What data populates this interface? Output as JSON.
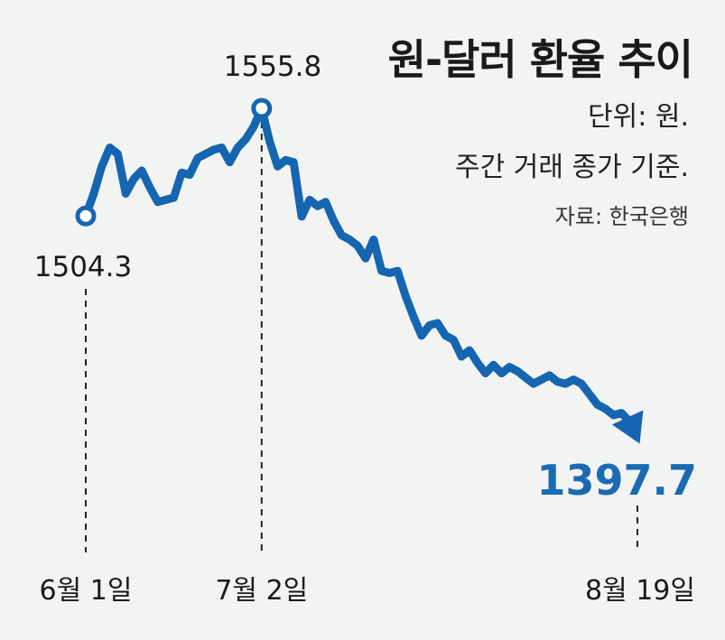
{
  "title": "원-달러 환율 추이",
  "unit_note": "단위: 원.",
  "basis_note": "주간 거래 종가 기준.",
  "source": "자료: 한국은행",
  "colors": {
    "line": "#1565b0",
    "end_value": "#1a6ab4",
    "text": "#1a1a1a",
    "background": "#f2f4f2"
  },
  "chart_data": {
    "type": "line",
    "title": "원-달러 환율 추이",
    "xlabel": "",
    "ylabel": "",
    "x_tick_labels": [
      "6월 1일",
      "7월 2일",
      "8월 19일"
    ],
    "x_tick_indices": [
      0,
      29,
      69
    ],
    "ylim": [
      1390,
      1560
    ],
    "values": [
      1504.3,
      1515,
      1528,
      1537,
      1534,
      1515,
      1522,
      1526,
      1518,
      1511,
      1512,
      1513,
      1525,
      1524,
      1532,
      1534,
      1536,
      1537,
      1530,
      1537,
      1541,
      1547,
      1555.8,
      1540,
      1528,
      1531,
      1530,
      1504,
      1512,
      1509,
      1511,
      1502,
      1495,
      1493,
      1490,
      1484,
      1493,
      1478,
      1477,
      1478,
      1466,
      1456,
      1447,
      1452,
      1453,
      1447,
      1445,
      1437,
      1440,
      1434,
      1429,
      1433,
      1429,
      1432,
      1430,
      1427,
      1424,
      1426,
      1428,
      1425,
      1424,
      1426,
      1424,
      1419,
      1414,
      1412,
      1409,
      1410,
      1406,
      1397.7
    ],
    "annotations": [
      {
        "label": "1504.3",
        "index": 0
      },
      {
        "label": "1555.8",
        "index": 22
      },
      {
        "label": "1397.7",
        "index": 69
      }
    ]
  }
}
